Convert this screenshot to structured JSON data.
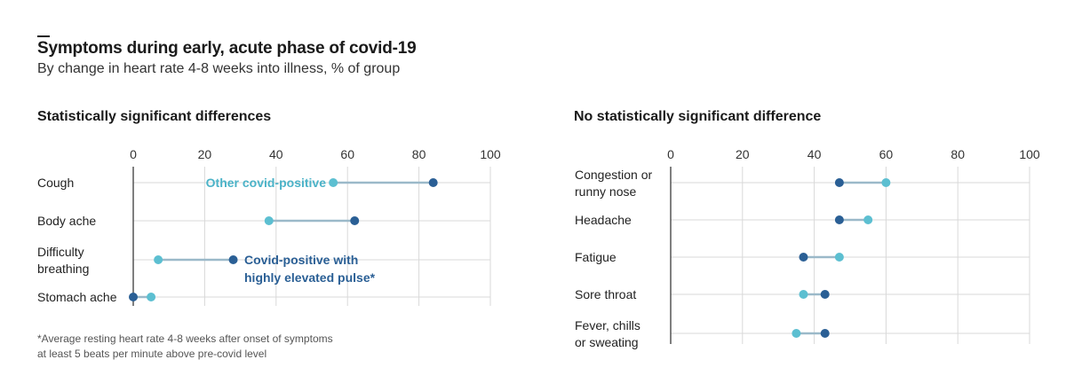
{
  "title": "Symptoms during early, acute phase of covid-19",
  "subtitle": "By change in heart rate 4-8 weeks into illness, % of group",
  "footnote": [
    "*Average resting heart rate 4-8 weeks after onset of symptoms",
    "at least 5 beats per minute above pre-covid level"
  ],
  "colors": {
    "elevated": "#2a5f95",
    "other": "#5cbfd1",
    "connector": "#9bb9c9",
    "grid": "#d9d9d9",
    "axis": "#555555"
  },
  "annotations": {
    "other": "Other covid-positive",
    "elevated": [
      "Covid-positive with",
      "highly elevated pulse*"
    ]
  },
  "chart_data": [
    {
      "type": "dot",
      "title": "Statistically significant differences",
      "xlim": [
        0,
        100
      ],
      "xticks": [
        0,
        20,
        40,
        60,
        80,
        100
      ],
      "categories": [
        [
          "Cough"
        ],
        [
          "Body ache"
        ],
        [
          "Difficulty",
          "breathing"
        ],
        [
          "Stomach ache"
        ]
      ],
      "series": [
        {
          "name": "Covid-positive with highly elevated pulse*",
          "values": [
            84,
            62,
            28,
            0
          ]
        },
        {
          "name": "Other covid-positive",
          "values": [
            56,
            38,
            7,
            5
          ]
        }
      ]
    },
    {
      "type": "dot",
      "title": "No statistically significant difference",
      "xlim": [
        0,
        100
      ],
      "xticks": [
        0,
        20,
        40,
        60,
        80,
        100
      ],
      "categories": [
        [
          "Congestion or",
          "runny nose"
        ],
        [
          "Headache"
        ],
        [
          "Fatigue"
        ],
        [
          "Sore throat"
        ],
        [
          "Fever, chills",
          "or sweating"
        ]
      ],
      "series": [
        {
          "name": "Covid-positive with highly elevated pulse*",
          "values": [
            47,
            47,
            37,
            43,
            43
          ]
        },
        {
          "name": "Other covid-positive",
          "values": [
            60,
            55,
            47,
            37,
            35
          ]
        }
      ]
    }
  ]
}
